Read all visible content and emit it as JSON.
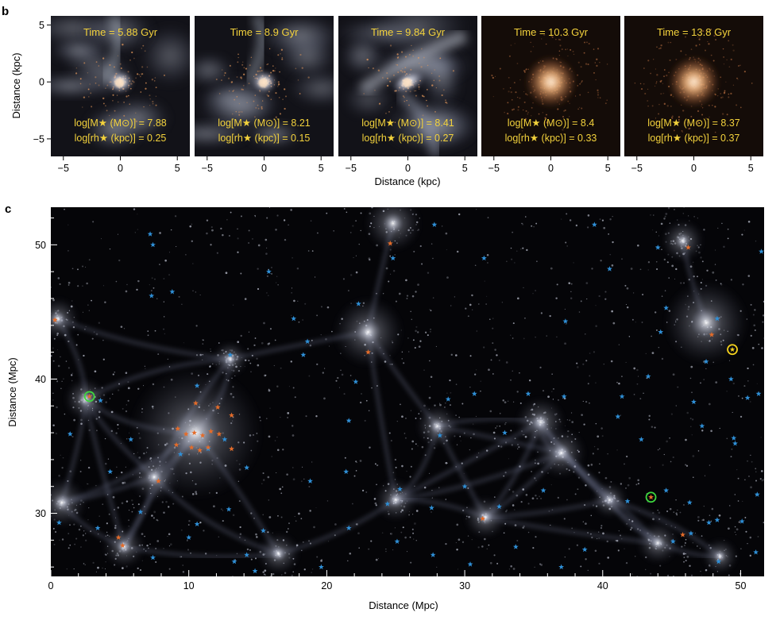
{
  "panel_b": {
    "letter": "b",
    "ylabel": "Distance (kpc)",
    "xlabel": "Distance (kpc)",
    "yticks": [
      "5",
      "0",
      "−5"
    ],
    "xticks": [
      "−5",
      "0",
      "5"
    ],
    "label_color": "#f3d23c",
    "snapshots": [
      {
        "time": "Time = 5.88 Gyr",
        "mass_label": "log[M★ (M⊙)] = 7.88",
        "radius_label": "log[rh★ (kpc)] = 0.25",
        "style": "gas-rich"
      },
      {
        "time": "Time = 8.9 Gyr",
        "mass_label": "log[M★ (M⊙)] = 8.21",
        "radius_label": "log[rh★ (kpc)] = 0.15",
        "style": "gas-rich"
      },
      {
        "time": "Time = 9.84 Gyr",
        "mass_label": "log[M★ (M⊙)] = 8.41",
        "radius_label": "log[rh★ (kpc)] = 0.27",
        "style": "gas-stream"
      },
      {
        "time": "Time = 10.3 Gyr",
        "mass_label": "log[M★ (M⊙)] = 8.4",
        "radius_label": "log[rh★ (kpc)] = 0.33",
        "style": "quenched"
      },
      {
        "time": "Time = 13.8 Gyr",
        "mass_label": "log[M★ (M⊙)] = 8.37",
        "radius_label": "log[rh★ (kpc)] = 0.37",
        "style": "quenched"
      }
    ]
  },
  "panel_c": {
    "letter": "c",
    "xlabel": "Distance (Mpc)",
    "ylabel": "Distance (Mpc)",
    "xticks": [
      "0",
      "10",
      "20",
      "30",
      "40",
      "50"
    ],
    "yticks": [
      "30",
      "40",
      "50"
    ],
    "xlim": [
      0,
      51.7
    ],
    "ylim": [
      25.3,
      52.8
    ],
    "colors": {
      "blue_star": "#2f8fd6",
      "orange_star": "#e46c2a",
      "green_ring": "#3ed63e",
      "yellow_ring": "#f5d21e"
    },
    "clusters": [
      {
        "x": 10.5,
        "y": 36.0,
        "r": 1.9
      },
      {
        "x": 23.0,
        "y": 43.5,
        "r": 1.0
      },
      {
        "x": 24.8,
        "y": 51.6,
        "r": 0.8
      },
      {
        "x": 47.5,
        "y": 44.2,
        "r": 1.2
      },
      {
        "x": 45.8,
        "y": 50.3,
        "r": 0.6
      },
      {
        "x": 7.5,
        "y": 32.7,
        "r": 0.7
      },
      {
        "x": 0.8,
        "y": 30.8,
        "r": 0.7
      },
      {
        "x": 31.5,
        "y": 29.7,
        "r": 0.6
      },
      {
        "x": 35.5,
        "y": 36.8,
        "r": 0.7
      },
      {
        "x": 44.0,
        "y": 27.8,
        "r": 0.6
      },
      {
        "x": 5.3,
        "y": 27.5,
        "r": 0.6
      },
      {
        "x": 16.5,
        "y": 27.0,
        "r": 0.6
      },
      {
        "x": 28.0,
        "y": 36.5,
        "r": 0.6
      },
      {
        "x": 37.0,
        "y": 34.5,
        "r": 0.7
      },
      {
        "x": 2.5,
        "y": 38.5,
        "r": 0.6
      },
      {
        "x": 0.5,
        "y": 44.5,
        "r": 0.6
      },
      {
        "x": 48.5,
        "y": 26.8,
        "r": 0.5
      },
      {
        "x": 13.0,
        "y": 41.5,
        "r": 0.5
      },
      {
        "x": 25.0,
        "y": 31.0,
        "r": 0.6
      },
      {
        "x": 40.5,
        "y": 31.0,
        "r": 0.5
      }
    ],
    "blue_stars": [
      [
        7.2,
        50.8
      ],
      [
        7.4,
        50.0
      ],
      [
        8.8,
        46.5
      ],
      [
        7.3,
        46.2
      ],
      [
        15.8,
        48.0
      ],
      [
        24.8,
        49.0
      ],
      [
        27.8,
        51.5
      ],
      [
        39.4,
        51.5
      ],
      [
        44.0,
        49.8
      ],
      [
        40.5,
        48.2
      ],
      [
        37.3,
        44.3
      ],
      [
        44.2,
        43.5
      ],
      [
        48.3,
        44.5
      ],
      [
        18.6,
        42.8
      ],
      [
        18.3,
        41.8
      ],
      [
        13.0,
        41.8
      ],
      [
        22.3,
        45.6
      ],
      [
        34.6,
        38.9
      ],
      [
        30.7,
        38.9
      ],
      [
        28.8,
        38.5
      ],
      [
        10.6,
        39.5
      ],
      [
        3.6,
        38.4
      ],
      [
        1.4,
        35.9
      ],
      [
        5.8,
        35.5
      ],
      [
        12.6,
        35.5
      ],
      [
        21.6,
        36.9
      ],
      [
        28.2,
        35.8
      ],
      [
        32.9,
        36.0
      ],
      [
        37.2,
        38.7
      ],
      [
        41.4,
        38.7
      ],
      [
        43.3,
        40.2
      ],
      [
        47.2,
        36.5
      ],
      [
        49.5,
        35.6
      ],
      [
        49.6,
        35.2
      ],
      [
        50.5,
        38.6
      ],
      [
        51.3,
        38.9
      ],
      [
        46.6,
        38.3
      ],
      [
        47.5,
        41.3
      ],
      [
        49.3,
        40.0
      ],
      [
        4.3,
        33.1
      ],
      [
        9.4,
        34.4
      ],
      [
        11.4,
        34.8
      ],
      [
        14.2,
        33.4
      ],
      [
        18.8,
        32.4
      ],
      [
        21.4,
        33.1
      ],
      [
        25.3,
        31.8
      ],
      [
        24.4,
        30.7
      ],
      [
        30.0,
        32.0
      ],
      [
        27.6,
        30.4
      ],
      [
        32.5,
        30.5
      ],
      [
        35.7,
        31.7
      ],
      [
        41.8,
        30.9
      ],
      [
        44.6,
        31.7
      ],
      [
        46.3,
        30.8
      ],
      [
        47.7,
        29.3
      ],
      [
        48.3,
        29.5
      ],
      [
        50.1,
        29.4
      ],
      [
        51.2,
        31.4
      ],
      [
        0.6,
        29.3
      ],
      [
        3.4,
        28.9
      ],
      [
        6.5,
        30.1
      ],
      [
        10.6,
        29.2
      ],
      [
        12.9,
        30.3
      ],
      [
        15.4,
        28.7
      ],
      [
        10.0,
        28.2
      ],
      [
        7.4,
        26.7
      ],
      [
        13.3,
        26.4
      ],
      [
        14.2,
        26.9
      ],
      [
        14.8,
        25.7
      ],
      [
        19.6,
        26.0
      ],
      [
        27.7,
        26.9
      ],
      [
        30.4,
        26.2
      ],
      [
        33.7,
        27.5
      ],
      [
        37.0,
        26.0
      ],
      [
        38.7,
        27.3
      ],
      [
        45.1,
        27.9
      ],
      [
        46.4,
        28.5
      ],
      [
        48.4,
        26.4
      ],
      [
        51.1,
        27.1
      ],
      [
        21.6,
        28.9
      ],
      [
        25.1,
        27.9
      ],
      [
        17.6,
        44.5
      ],
      [
        31.4,
        49.0
      ],
      [
        44.6,
        45.3
      ],
      [
        41.1,
        37.2
      ],
      [
        42.8,
        35.5
      ],
      [
        22.1,
        39.8
      ],
      [
        51.5,
        49.5
      ]
    ],
    "orange_stars": [
      [
        0.3,
        44.4
      ],
      [
        24.6,
        50.1
      ],
      [
        46.2,
        49.8
      ],
      [
        23.0,
        42.0
      ],
      [
        47.9,
        43.3
      ],
      [
        2.8,
        38.7
      ],
      [
        10.5,
        38.2
      ],
      [
        12.1,
        37.9
      ],
      [
        13.1,
        37.3
      ],
      [
        9.2,
        36.3
      ],
      [
        9.8,
        35.9
      ],
      [
        10.4,
        36.0
      ],
      [
        11.0,
        35.8
      ],
      [
        11.6,
        36.1
      ],
      [
        12.2,
        35.9
      ],
      [
        9.1,
        35.1
      ],
      [
        10.2,
        34.9
      ],
      [
        10.8,
        34.7
      ],
      [
        11.4,
        34.9
      ],
      [
        13.1,
        34.8
      ],
      [
        7.8,
        32.4
      ],
      [
        31.3,
        29.6
      ],
      [
        43.5,
        31.2
      ],
      [
        4.9,
        28.2
      ],
      [
        5.2,
        27.6
      ],
      [
        45.8,
        28.4
      ]
    ],
    "rings": [
      {
        "x": 2.8,
        "y": 38.7,
        "color": "green"
      },
      {
        "x": 43.5,
        "y": 31.2,
        "color": "green"
      },
      {
        "x": 49.4,
        "y": 42.2,
        "color": "yellow"
      }
    ]
  }
}
